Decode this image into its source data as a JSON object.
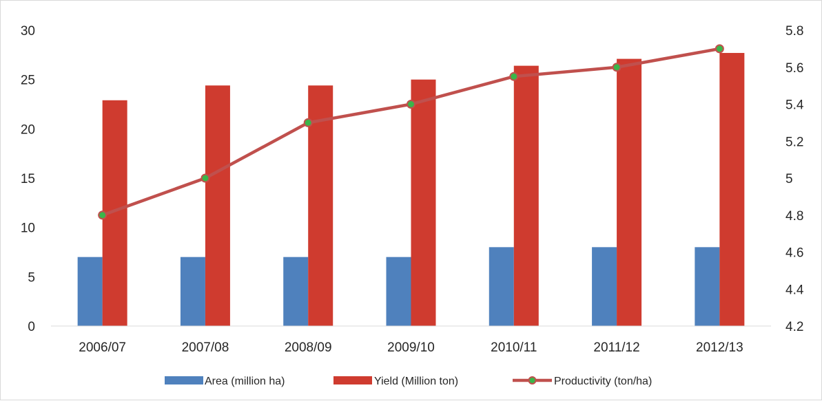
{
  "chart_data": {
    "type": "bar",
    "title": "",
    "xlabel": "",
    "ylabel": "",
    "y2label": "",
    "categories": [
      "2006/07",
      "2007/08",
      "2008/09",
      "2009/10",
      "2010/11",
      "2011/12",
      "2012/13"
    ],
    "ylim": [
      0,
      30
    ],
    "y_ticks": [
      "0",
      "5",
      "10",
      "15",
      "20",
      "25",
      "30"
    ],
    "y2lim": [
      4.2,
      5.8
    ],
    "y2_ticks": [
      "4.2",
      "4.4",
      "4.6",
      "4.8",
      "5",
      "5.2",
      "5.4",
      "5.6",
      "5.8"
    ],
    "grid": false,
    "legend_position": "bottom",
    "series": [
      {
        "name": "Area (million ha)",
        "type": "bar",
        "axis": "left",
        "color": "#4f81bd",
        "values": [
          7,
          7,
          7,
          7,
          8,
          8,
          8
        ]
      },
      {
        "name": "Yield (Million ton)",
        "type": "bar",
        "axis": "left",
        "color": "#cf3b2f",
        "values": [
          22.9,
          24.4,
          24.4,
          25.0,
          26.4,
          27.1,
          27.7
        ]
      },
      {
        "name": "Productivity (ton/ha)",
        "type": "line",
        "axis": "right",
        "color": "#c0504d",
        "marker_color": "#3bb54a",
        "values": [
          4.8,
          5.0,
          5.3,
          5.4,
          5.55,
          5.6,
          5.7
        ]
      }
    ]
  }
}
